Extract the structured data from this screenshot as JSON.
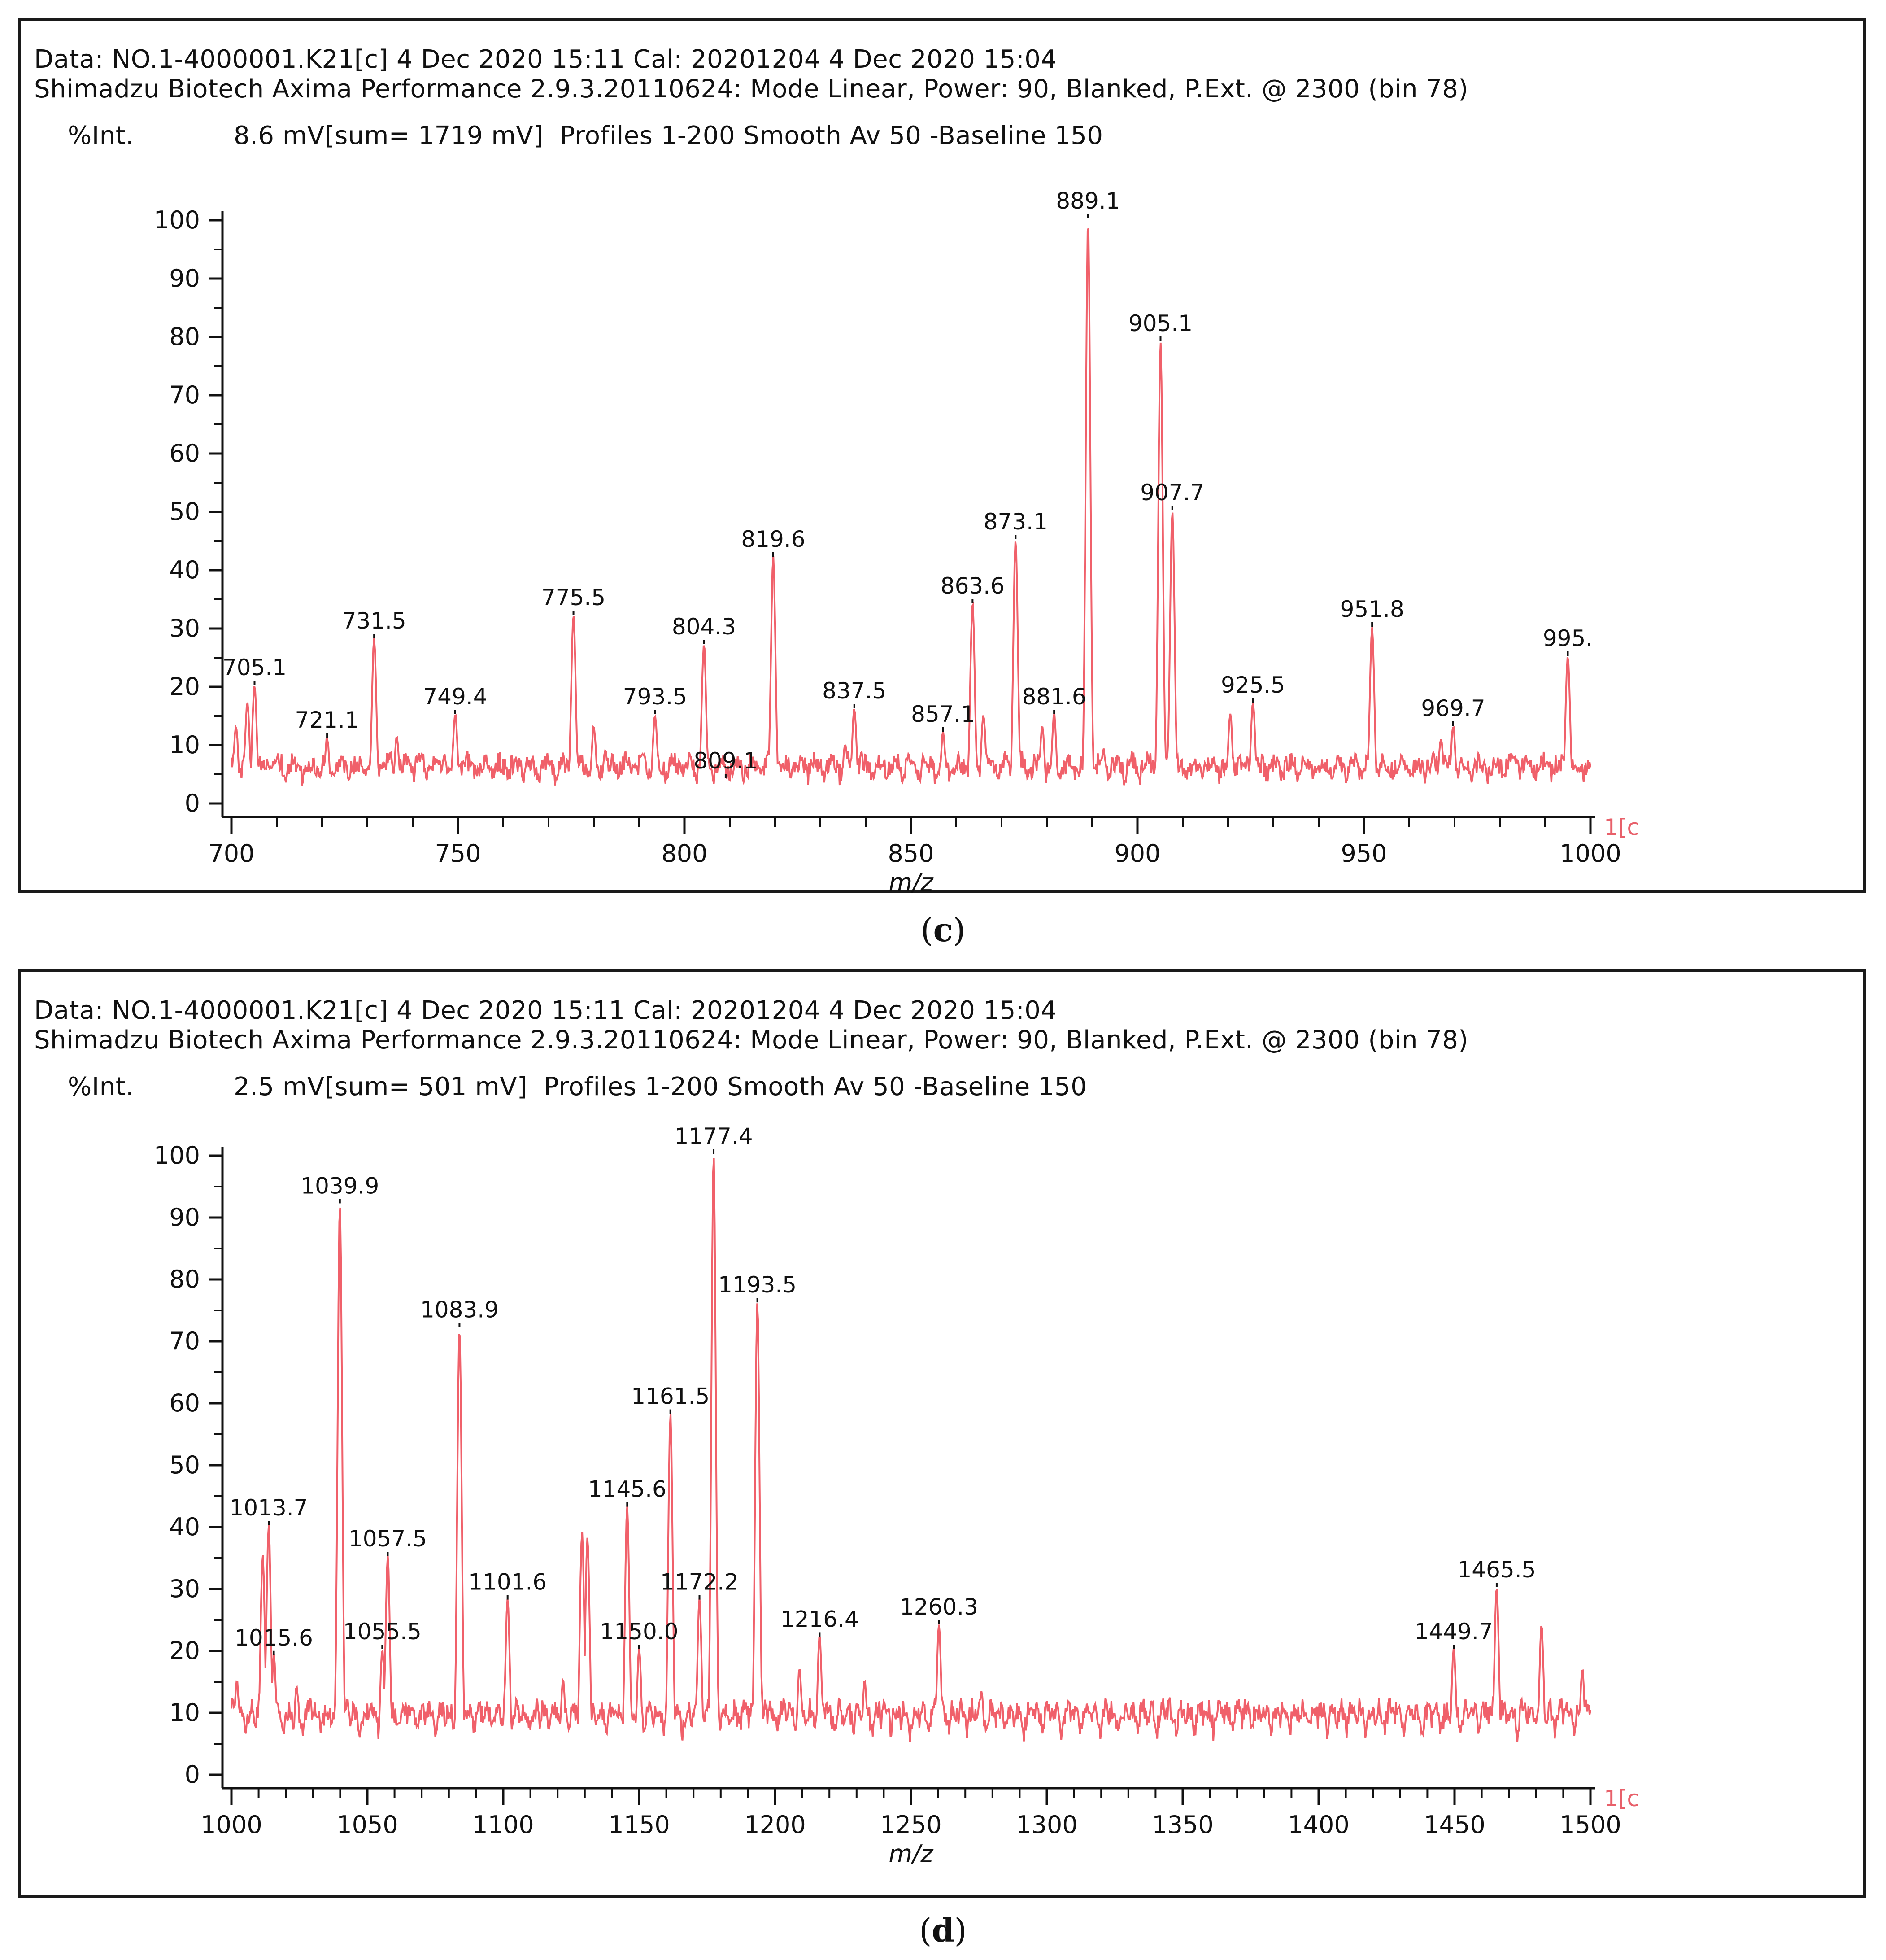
{
  "colors": {
    "trace": "#f0606a",
    "axis": "#111111",
    "border": "#1a1a1a"
  },
  "panels": [
    {
      "caption": "c",
      "header": {
        "line1": "Data: NO.1-4000001.K21[c] 4 Dec 2020 15:11 Cal: 20201204 4 Dec 2020 15:04",
        "line2": "Shimadzu Biotech Axima Performance 2.9.3.20110624: Mode Linear, Power: 90, Blanked, P.Ext. @ 2300 (bin 78)",
        "int_label": "%Int.",
        "int_info": "8.6 mV[sum= 1719 mV]  Profiles 1-200 Smooth Av 50 -Baseline 150"
      },
      "corner_label": "1[c",
      "chart_data": {
        "type": "line",
        "xlabel": "m/z",
        "ylabel": "%Int.",
        "xlim": [
          700,
          1000
        ],
        "ylim": [
          0,
          100
        ],
        "x_ticks": [
          700,
          750,
          800,
          850,
          900,
          950,
          1000
        ],
        "y_ticks": [
          0,
          10,
          20,
          30,
          40,
          50,
          60,
          70,
          80,
          90,
          100
        ],
        "peaks": [
          {
            "mz": 705.1,
            "intensity": 20,
            "label": "705.1"
          },
          {
            "mz": 721.1,
            "intensity": 11,
            "label": "721.1"
          },
          {
            "mz": 731.5,
            "intensity": 28,
            "label": "731.5"
          },
          {
            "mz": 749.4,
            "intensity": 15,
            "label": "749.4"
          },
          {
            "mz": 775.5,
            "intensity": 32,
            "label": "775.5"
          },
          {
            "mz": 793.5,
            "intensity": 15,
            "label": "793.5"
          },
          {
            "mz": 804.3,
            "intensity": 27,
            "label": "804.3"
          },
          {
            "mz": 809.1,
            "intensity": 4,
            "label": "809.1"
          },
          {
            "mz": 819.6,
            "intensity": 42,
            "label": "819.6"
          },
          {
            "mz": 837.5,
            "intensity": 16,
            "label": "837.5"
          },
          {
            "mz": 857.1,
            "intensity": 12,
            "label": "857.1"
          },
          {
            "mz": 863.6,
            "intensity": 34,
            "label": "863.6"
          },
          {
            "mz": 873.1,
            "intensity": 45,
            "label": "873.1"
          },
          {
            "mz": 881.6,
            "intensity": 15,
            "label": "881.6"
          },
          {
            "mz": 889.1,
            "intensity": 100,
            "label": "889.1"
          },
          {
            "mz": 905.1,
            "intensity": 79,
            "label": "905.1"
          },
          {
            "mz": 907.7,
            "intensity": 50,
            "label": "907.7"
          },
          {
            "mz": 925.5,
            "intensity": 17,
            "label": "925.5"
          },
          {
            "mz": 951.8,
            "intensity": 30,
            "label": "951.8"
          },
          {
            "mz": 969.7,
            "intensity": 13,
            "label": "969.7"
          },
          {
            "mz": 995.0,
            "intensity": 25,
            "label": "995."
          }
        ],
        "unlabeled_peaks": [
          {
            "mz": 701,
            "intensity": 13
          },
          {
            "mz": 703.5,
            "intensity": 17
          },
          {
            "mz": 736.5,
            "intensity": 11
          },
          {
            "mz": 747,
            "intensity": 8
          },
          {
            "mz": 780,
            "intensity": 13
          },
          {
            "mz": 782.5,
            "intensity": 9
          },
          {
            "mz": 835.5,
            "intensity": 10
          },
          {
            "mz": 849.5,
            "intensity": 8
          },
          {
            "mz": 866,
            "intensity": 15
          },
          {
            "mz": 879,
            "intensity": 13
          },
          {
            "mz": 892.5,
            "intensity": 9
          },
          {
            "mz": 920.5,
            "intensity": 15
          },
          {
            "mz": 967,
            "intensity": 11
          },
          {
            "mz": 990.5,
            "intensity": 7
          }
        ]
      }
    },
    {
      "caption": "d",
      "header": {
        "line1": "Data: NO.1-4000001.K21[c] 4 Dec 2020 15:11 Cal: 20201204 4 Dec 2020 15:04",
        "line2": "Shimadzu Biotech Axima Performance 2.9.3.20110624: Mode Linear, Power: 90, Blanked, P.Ext. @ 2300 (bin 78)",
        "int_label": "%Int.",
        "int_info": "2.5 mV[sum= 501 mV]  Profiles 1-200 Smooth Av 50 -Baseline 150"
      },
      "corner_label": "1[c",
      "chart_data": {
        "type": "line",
        "xlabel": "m/z",
        "ylabel": "%Int.",
        "xlim": [
          1000,
          1500
        ],
        "ylim": [
          0,
          100
        ],
        "x_ticks": [
          1000,
          1050,
          1100,
          1150,
          1200,
          1250,
          1300,
          1350,
          1400,
          1450,
          1500
        ],
        "y_ticks": [
          0,
          10,
          20,
          30,
          40,
          50,
          60,
          70,
          80,
          90,
          100
        ],
        "peaks": [
          {
            "mz": 1013.7,
            "intensity": 40,
            "label": "1013.7"
          },
          {
            "mz": 1015.6,
            "intensity": 19,
            "label": "1015.6"
          },
          {
            "mz": 1039.9,
            "intensity": 92,
            "label": "1039.9"
          },
          {
            "mz": 1055.5,
            "intensity": 20,
            "label": "1055.5"
          },
          {
            "mz": 1057.5,
            "intensity": 35,
            "label": "1057.5"
          },
          {
            "mz": 1083.9,
            "intensity": 72,
            "label": "1083.9"
          },
          {
            "mz": 1101.6,
            "intensity": 28,
            "label": "1101.6"
          },
          {
            "mz": 1145.6,
            "intensity": 43,
            "label": "1145.6"
          },
          {
            "mz": 1150.0,
            "intensity": 20,
            "label": "1150.0"
          },
          {
            "mz": 1161.5,
            "intensity": 58,
            "label": "1161.5"
          },
          {
            "mz": 1172.2,
            "intensity": 28,
            "label": "1172.2"
          },
          {
            "mz": 1177.4,
            "intensity": 100,
            "label": "1177.4"
          },
          {
            "mz": 1193.5,
            "intensity": 76,
            "label": "1193.5"
          },
          {
            "mz": 1216.4,
            "intensity": 22,
            "label": "1216.4"
          },
          {
            "mz": 1260.3,
            "intensity": 24,
            "label": "1260.3"
          },
          {
            "mz": 1449.7,
            "intensity": 20,
            "label": "1449.7"
          },
          {
            "mz": 1465.5,
            "intensity": 30,
            "label": "1465.5"
          }
        ],
        "unlabeled_peaks": [
          {
            "mz": 1002,
            "intensity": 15
          },
          {
            "mz": 1011.5,
            "intensity": 35
          },
          {
            "mz": 1024,
            "intensity": 14
          },
          {
            "mz": 1029,
            "intensity": 12
          },
          {
            "mz": 1129,
            "intensity": 39
          },
          {
            "mz": 1131,
            "intensity": 38
          },
          {
            "mz": 1122,
            "intensity": 15
          },
          {
            "mz": 1209,
            "intensity": 17
          },
          {
            "mz": 1233,
            "intensity": 15
          },
          {
            "mz": 1276,
            "intensity": 13
          },
          {
            "mz": 1482,
            "intensity": 24
          },
          {
            "mz": 1497,
            "intensity": 17
          }
        ]
      }
    }
  ]
}
